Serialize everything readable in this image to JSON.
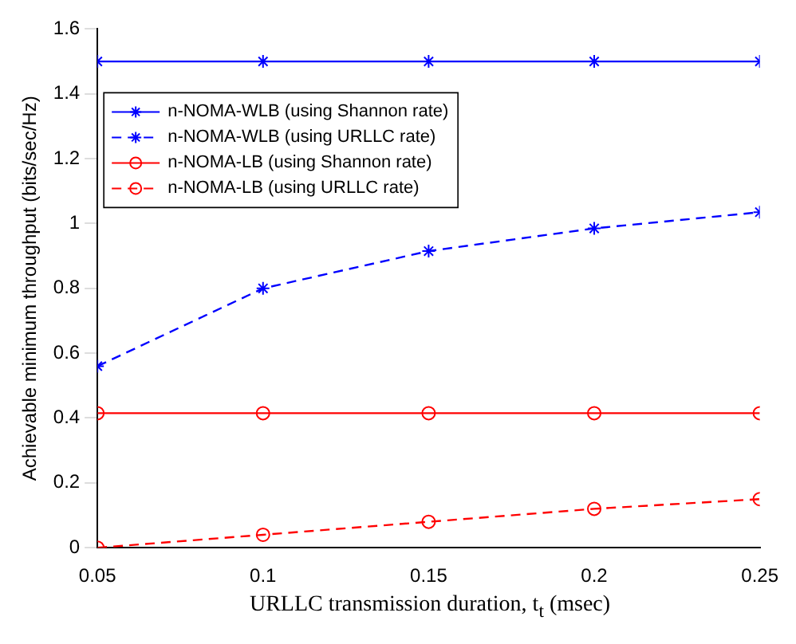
{
  "chart_data": {
    "type": "line",
    "xlabel": "URLLC transmission duration, t$_{t}$ (msec)",
    "ylabel": "Achievable minimum throughput (bits/sec/Hz)",
    "x": [
      0.05,
      0.1,
      0.15,
      0.2,
      0.25
    ],
    "series": [
      {
        "name": "n-NOMA-WLB (using Shannon rate)",
        "color": "#0000ff",
        "marker": "cross",
        "line_style": "solid",
        "values": [
          1.5,
          1.5,
          1.5,
          1.5,
          1.5
        ]
      },
      {
        "name": "n-NOMA-WLB (using URLLC rate)",
        "color": "#0000ff",
        "marker": "cross",
        "line_style": "dashed",
        "values": [
          0.56,
          0.8,
          0.915,
          0.985,
          1.035
        ]
      },
      {
        "name": "n-NOMA-LB (using Shannon rate)",
        "color": "#ff0000",
        "marker": "circle",
        "line_style": "solid",
        "values": [
          0.415,
          0.415,
          0.415,
          0.415,
          0.415
        ]
      },
      {
        "name": "n-NOMA-LB (using URLLC rate)",
        "color": "#ff0000",
        "marker": "circle",
        "line_style": "dashed",
        "values": [
          0.0,
          0.04,
          0.08,
          0.12,
          0.15
        ]
      }
    ],
    "xlim": [
      0.05,
      0.25
    ],
    "xticks": [
      0.05,
      0.1,
      0.15,
      0.2,
      0.25
    ],
    "ylim": [
      0,
      1.6
    ],
    "yticks": [
      0,
      0.2,
      0.4,
      0.6,
      0.8,
      1,
      1.2,
      1.4,
      1.6
    ],
    "grid": false,
    "legend": "top left"
  }
}
